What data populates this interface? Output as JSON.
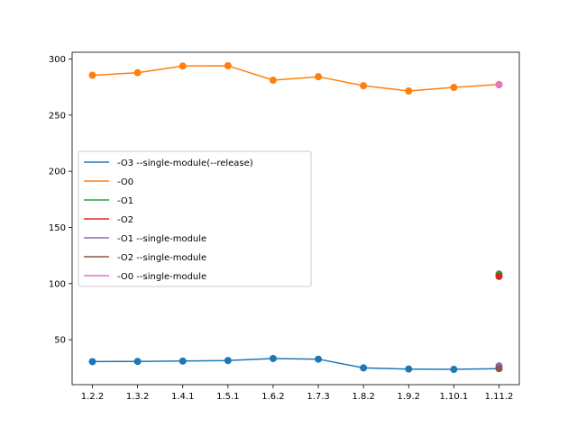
{
  "chart_data": {
    "type": "line",
    "title": "",
    "xlabel": "",
    "ylabel": "",
    "categories": [
      "1.2.2",
      "1.3.2",
      "1.4.1",
      "1.5.1",
      "1.6.2",
      "1.7.3",
      "1.8.2",
      "1.9.2",
      "1.10.1",
      "1.11.2"
    ],
    "ylim": [
      10,
      306
    ],
    "yticks": [
      50,
      100,
      150,
      200,
      250,
      300
    ],
    "grid": false,
    "legend_position": "center-left",
    "series": [
      {
        "name": "-O3 --single-module(--release)",
        "color": "#1f77b4",
        "values": [
          30.5,
          30.7,
          31.0,
          31.5,
          33.3,
          32.7,
          24.9,
          23.9,
          23.6,
          24.3
        ]
      },
      {
        "name": "-O0",
        "color": "#ff7f0e",
        "values": [
          285.5,
          287.8,
          293.7,
          294.0,
          281.1,
          284.2,
          276.2,
          271.5,
          274.7,
          277.3
        ]
      },
      {
        "name": "-O1",
        "color": "#2ca02c",
        "values": [
          null,
          null,
          null,
          null,
          null,
          null,
          null,
          null,
          null,
          108.5
        ]
      },
      {
        "name": "-O2",
        "color": "#d62728",
        "values": [
          null,
          null,
          null,
          null,
          null,
          null,
          null,
          null,
          null,
          106.4
        ]
      },
      {
        "name": "-O1 --single-module",
        "color": "#9467bd",
        "values": [
          null,
          null,
          null,
          null,
          null,
          null,
          null,
          null,
          null,
          26.7
        ]
      },
      {
        "name": "-O2 --single-module",
        "color": "#8c564b",
        "values": [
          null,
          null,
          null,
          null,
          null,
          null,
          null,
          null,
          null,
          24.3
        ]
      },
      {
        "name": "-O0 --single-module",
        "color": "#e377c2",
        "values": [
          null,
          null,
          null,
          null,
          null,
          null,
          null,
          null,
          null,
          277.0
        ]
      }
    ]
  }
}
